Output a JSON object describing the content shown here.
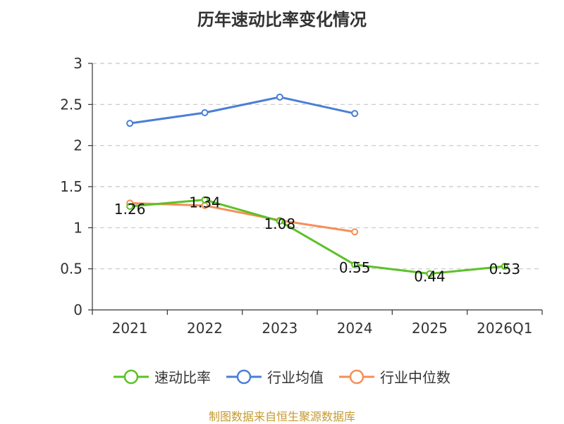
{
  "chart_data": {
    "type": "line",
    "title": "历年速动比率变化情况",
    "categories": [
      "2021",
      "2022",
      "2023",
      "2024",
      "2025",
      "2026Q1"
    ],
    "ylim": [
      0,
      3
    ],
    "yticks": [
      0,
      0.5,
      1,
      1.5,
      2,
      2.5,
      3
    ],
    "ytick_labels": [
      "0",
      "0.5",
      "1",
      "1.5",
      "2",
      "2.5",
      "3"
    ],
    "grid": true,
    "legend_position": "bottom",
    "series": [
      {
        "name": "速动比率",
        "color": "#5cc126",
        "values": [
          1.26,
          1.34,
          1.08,
          0.55,
          0.44,
          0.53
        ],
        "labels": [
          "1.26",
          "1.34",
          "1.08",
          "0.55",
          "0.44",
          "0.53"
        ]
      },
      {
        "name": "行业均值",
        "color": "#4a7fd6",
        "values": [
          2.27,
          2.4,
          2.59,
          2.39,
          null,
          null
        ],
        "labels": null
      },
      {
        "name": "行业中位数",
        "color": "#f58f5b",
        "values": [
          1.3,
          1.27,
          1.09,
          0.95,
          null,
          null
        ],
        "labels": null
      }
    ],
    "source": "制图数据来自恒生聚源数据库"
  }
}
